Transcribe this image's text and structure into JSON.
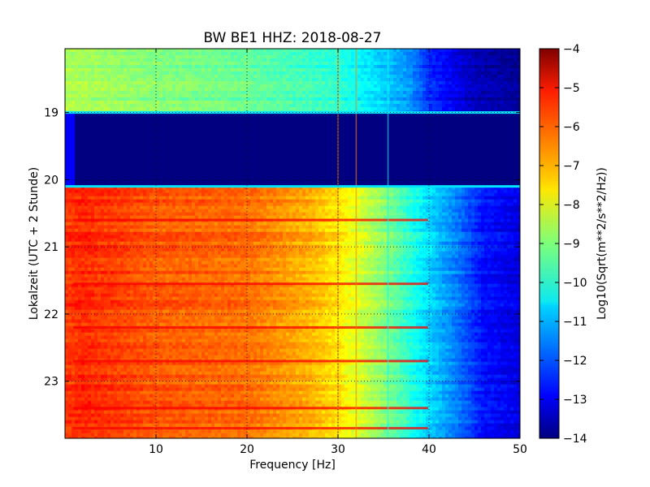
{
  "chart_data": {
    "type": "heatmap",
    "title": "BW BE1 HHZ: 2018-08-27",
    "xlabel": "Frequency [Hz]",
    "ylabel": "Lokalzeit (UTC + 2 Stunde)",
    "xlim": [
      0,
      50
    ],
    "ylim": [
      18.05,
      23.85
    ],
    "x_ticks": [
      10,
      20,
      30,
      40,
      50
    ],
    "x_tick_labels": [
      "10",
      "20",
      "30",
      "40",
      "50"
    ],
    "y_ticks": [
      19,
      20,
      21,
      22,
      23
    ],
    "y_tick_labels": [
      "19",
      "20",
      "21",
      "22",
      "23"
    ],
    "grid": true,
    "colormap": "jet",
    "colorbar": {
      "label": "Log10(Sqrt(m**2/s**2/Hz))",
      "range": [
        -14,
        -4
      ],
      "ticks": [
        -4,
        -5,
        -6,
        -7,
        -8,
        -9,
        -10,
        -11,
        -12,
        -13,
        -14
      ],
      "tick_labels": [
        "−4",
        "−5",
        "−6",
        "−7",
        "−8",
        "−9",
        "−10",
        "−11",
        "−12",
        "−13",
        "−14"
      ]
    },
    "segments": [
      {
        "from": 18.05,
        "to": 19.0,
        "level": "low",
        "spectrum_hz": [
          0,
          5,
          10,
          20,
          30,
          35,
          38,
          40,
          45,
          50
        ],
        "spectrum_value": [
          -8.6,
          -8.8,
          -9.0,
          -9.3,
          -9.9,
          -10.8,
          -11.4,
          -12.4,
          -13.5,
          -13.9
        ]
      },
      {
        "from": 19.0,
        "to": 20.1,
        "level": "no-data",
        "value": -14
      },
      {
        "from": 20.1,
        "to": 23.85,
        "level": "high",
        "spectrum_hz": [
          0,
          2,
          10,
          20,
          27,
          30,
          33,
          36,
          40,
          43,
          46,
          50
        ],
        "spectrum_value": [
          -5.8,
          -5.6,
          -6.1,
          -6.3,
          -7.0,
          -7.5,
          -8.3,
          -9.2,
          -10.6,
          -11.5,
          -12.6,
          -13.0
        ]
      }
    ],
    "horizontal_streaks": [
      20.6,
      21.55,
      22.2,
      22.7,
      23.4,
      23.7
    ],
    "vertical_features_hz": [
      30,
      32,
      35.5
    ]
  }
}
